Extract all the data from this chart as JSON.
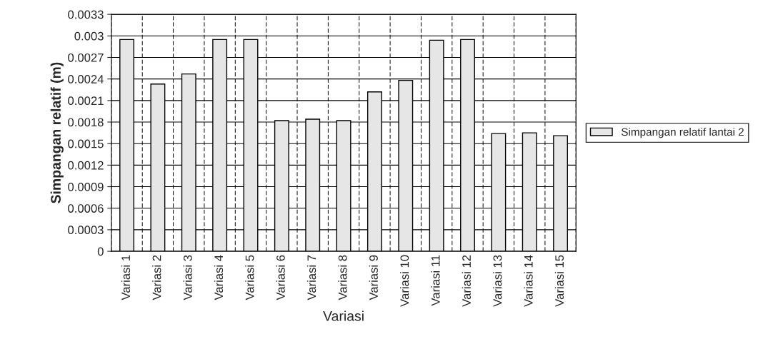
{
  "chart_data": {
    "type": "bar",
    "xlabel": "Variasi",
    "ylabel": "Simpangan relatif (m)",
    "categories": [
      "Variasi 1",
      "Variasi 2",
      "Variasi 3",
      "Variasi 4",
      "Variasi 5",
      "Variasi 6",
      "Variasi 7",
      "Variasi 8",
      "Variasi 9",
      "Variasi 10",
      "Variasi 11",
      "Variasi 12",
      "Variasi 13",
      "Variasi 14",
      "Variasi 15"
    ],
    "series": [
      {
        "name": "Simpangan relatif lantai 2",
        "color": "#e6e6e6",
        "values": [
          0.00295,
          0.00233,
          0.00247,
          0.00295,
          0.00295,
          0.00182,
          0.00184,
          0.00182,
          0.00222,
          0.00238,
          0.00294,
          0.00295,
          0.00164,
          0.00165,
          0.00161
        ]
      }
    ],
    "ylim": [
      0,
      0.0033
    ],
    "yticks": [
      0,
      0.0003,
      0.0006,
      0.0009,
      0.0012,
      0.0015,
      0.0018,
      0.0021,
      0.0024,
      0.0027,
      0.003,
      0.0033
    ],
    "grid": true,
    "legend": "right"
  }
}
